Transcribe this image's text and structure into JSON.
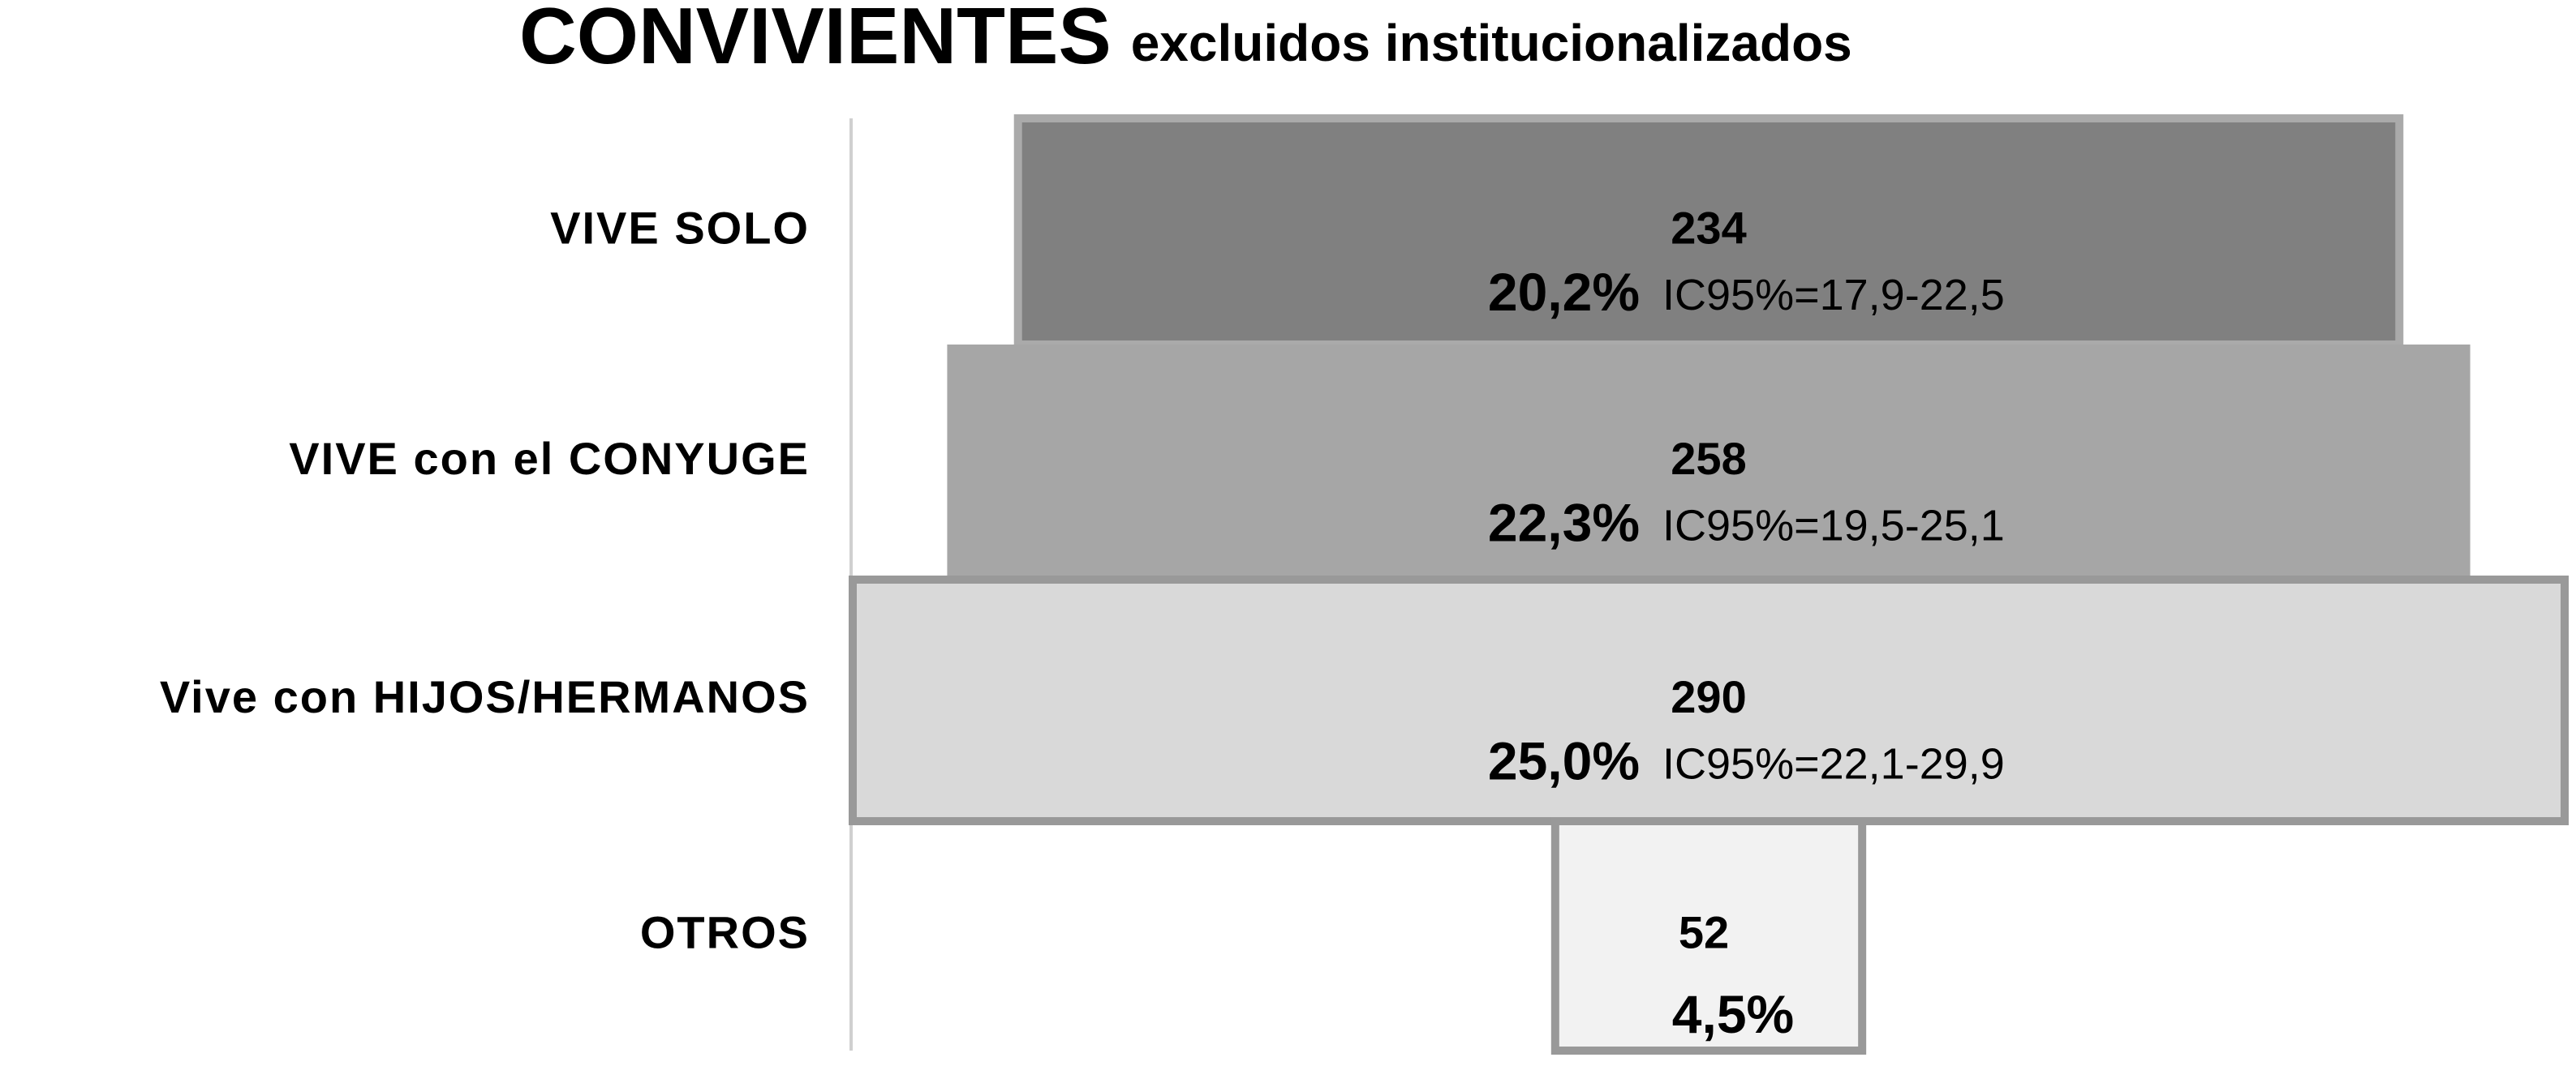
{
  "chart_data": {
    "type": "funnel",
    "title": "CONVIVIENTES",
    "subtitle": "excluidos institucionalizados",
    "categories": [
      "VIVE SOLO",
      "VIVE con el CONYUGE",
      "Vive con HIJOS/HERMANOS",
      "OTROS"
    ],
    "series": [
      {
        "name": "n",
        "values": [
          234,
          258,
          290,
          52
        ],
        "colors": [
          "#808080",
          "#a6a6a6",
          "#d9d9d9",
          "#f2f2f2"
        ],
        "borders": [
          "#aaaaaa",
          null,
          "#999999",
          "#999999"
        ]
      },
      {
        "name": "%",
        "values": [
          20.2,
          22.3,
          25.0,
          4.5
        ],
        "value_labels": [
          "20,2%",
          "22,3%",
          "25,0%",
          "4,5%"
        ],
        "ci_labels": [
          "IC95%=17,9-22,5",
          "IC95%=19,5-25,1",
          "IC95%=22,1-29,9",
          null
        ]
      }
    ]
  }
}
